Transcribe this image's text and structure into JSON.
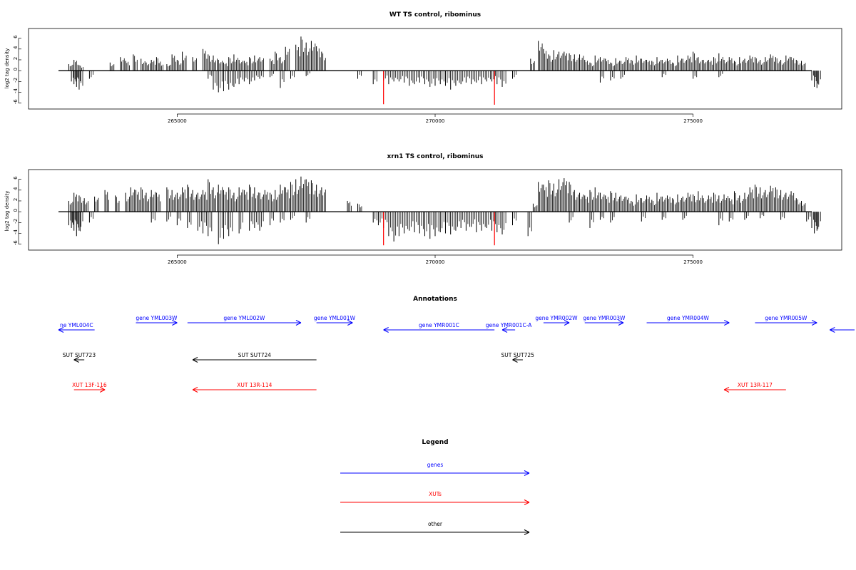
{
  "colors": {
    "gene": "#0000ff",
    "xut": "#ff0000",
    "other": "#000000",
    "bar": "#000000",
    "highlight": "#ff0000"
  },
  "chart_data": [
    {
      "type": "bar",
      "title": "WT TS control, ribominus",
      "ylabel": "log2 tag density",
      "xlim": [
        262700,
        277300
      ],
      "ylim": [
        -6.3,
        7
      ],
      "xticks": [
        "265000",
        "270000",
        "275000"
      ],
      "yticks": [
        "6",
        "4",
        "2",
        "0",
        "-2",
        "-4",
        "-6"
      ],
      "grid": false,
      "series": [
        {
          "x": [
            262900,
            263000,
            263100,
            263700,
            263900,
            264000,
            264150,
            264300,
            264400,
            264500,
            264600,
            264650,
            264800,
            264900,
            265000,
            265100,
            265300,
            265500,
            265600,
            265700,
            265800,
            265900,
            266000,
            266100,
            266200,
            266300,
            266400,
            266500,
            266600,
            266800,
            266900,
            267000,
            267100,
            267300,
            267400,
            267500,
            267600,
            267700,
            267800,
            271850,
            272000,
            272100,
            272200,
            272300,
            272400,
            272500,
            272600,
            272700,
            272800,
            272900,
            273000,
            273100,
            273200,
            273300,
            273400,
            273500,
            273600,
            273700,
            273800,
            273900,
            274000,
            274100,
            274200,
            274300,
            274400,
            274500,
            274600,
            274700,
            274800,
            274900,
            275000,
            275100,
            275200,
            275300,
            275400,
            275500,
            275600,
            275700,
            275800,
            275900,
            276000,
            276100,
            276200,
            276300,
            276400,
            276500,
            276600,
            276700,
            276800,
            276900,
            277000,
            277100
          ],
          "values": [
            1.2,
            2,
            1,
            1.5,
            2.5,
            1.8,
            3,
            2.2,
            1.5,
            2,
            2.5,
            1.4,
            1.2,
            3,
            2,
            3.5,
            2.5,
            4,
            3,
            2.8,
            2,
            1.5,
            2.5,
            3,
            2,
            1.8,
            2.5,
            2.8,
            2.5,
            2.2,
            3.5,
            2.5,
            4.4,
            4.8,
            6.3,
            5.2,
            5.5,
            4.5,
            3.5,
            2.2,
            5.5,
            4,
            3,
            3.8,
            3.5,
            3.5,
            3.2,
            3,
            3,
            2,
            1.5,
            2.8,
            2.5,
            2.2,
            1.5,
            2.3,
            1.8,
            2.5,
            2,
            2.8,
            2.2,
            2,
            1.8,
            2.5,
            2,
            2.2,
            1.5,
            2.8,
            2.2,
            2.8,
            3.5,
            2.5,
            2,
            2,
            2.5,
            3.2,
            2,
            2.5,
            1.8,
            2.5,
            2.2,
            2.8,
            2.5,
            2,
            2.5,
            3,
            2.5,
            2,
            2.8,
            2.5,
            2,
            1.8
          ],
          "neg_x": [
            262950,
            263000,
            263050,
            263100,
            263300,
            265600,
            265700,
            265800,
            265900,
            266000,
            266100,
            266200,
            266300,
            266400,
            266500,
            266600,
            266800,
            267000,
            267200,
            267500,
            268500,
            268800,
            269000,
            269100,
            269200,
            269300,
            269400,
            269500,
            269600,
            269700,
            269800,
            269900,
            270000,
            270100,
            270200,
            270300,
            270400,
            270500,
            270600,
            270700,
            270800,
            270900,
            271000,
            271100,
            271200,
            271300,
            271500,
            273200,
            273400,
            273600,
            274400,
            275000,
            275500,
            277300,
            277350,
            277400
          ],
          "neg_values": [
            -2,
            -2.5,
            -3,
            -3.5,
            -1.5,
            -1.5,
            -3.5,
            -4,
            -3.8,
            -3.5,
            -3,
            -2.5,
            -2,
            -2.5,
            -1.8,
            -1.5,
            -1.2,
            -3.2,
            -1.5,
            -1,
            -1.5,
            -2.5,
            -1.8,
            -2.5,
            -2,
            -2,
            -2.2,
            -2.8,
            -2.5,
            -2.2,
            -2.5,
            -3,
            -2.8,
            -2.5,
            -2.8,
            -3.5,
            -2.8,
            -2.5,
            -2.2,
            -2.5,
            -2.2,
            -2.5,
            -2,
            -2,
            -2.5,
            -3,
            -1.5,
            -2.2,
            -1.8,
            -1.5,
            -1.2,
            -1.5,
            -1.2,
            -1.8,
            -3,
            -3.2
          ],
          "highlight_x": [
            269000,
            271150
          ],
          "highlight_values": [
            -6.2,
            -6.3
          ]
        }
      ]
    },
    {
      "type": "bar",
      "title": "xrn1 TS control, ribominus",
      "ylabel": "log2 tag density",
      "xlim": [
        262700,
        277300
      ],
      "ylim": [
        -6.3,
        7
      ],
      "xticks": [
        "265000",
        "270000",
        "275000"
      ],
      "yticks": [
        "6",
        "4",
        "2",
        "0",
        "-2",
        "-4",
        "-6"
      ],
      "grid": false,
      "series": [
        {
          "x": [
            262900,
            263000,
            263100,
            263200,
            263400,
            263600,
            263800,
            264000,
            264100,
            264200,
            264300,
            264400,
            264500,
            264600,
            264800,
            264900,
            265000,
            265100,
            265200,
            265300,
            265400,
            265500,
            265600,
            265700,
            265800,
            265900,
            266000,
            266100,
            266200,
            266300,
            266400,
            266500,
            266600,
            266700,
            266800,
            266900,
            267000,
            267100,
            267200,
            267300,
            267400,
            267500,
            267600,
            267700,
            267800,
            268300,
            268500,
            271900,
            272000,
            272100,
            272200,
            272300,
            272400,
            272500,
            272600,
            272700,
            272800,
            272900,
            273000,
            273100,
            273200,
            273300,
            273400,
            273500,
            273600,
            273700,
            273800,
            273900,
            274000,
            274100,
            274200,
            274300,
            274400,
            274500,
            274600,
            274700,
            274800,
            274900,
            275000,
            275100,
            275200,
            275300,
            275400,
            275500,
            275600,
            275700,
            275800,
            275900,
            276000,
            276100,
            276200,
            276300,
            276400,
            276500,
            276600,
            276700,
            276800,
            276900,
            277000,
            277100
          ],
          "values": [
            2,
            3.5,
            3,
            2.5,
            2.8,
            4,
            3,
            3.5,
            4.5,
            4,
            4.5,
            3.5,
            4,
            3.5,
            4.5,
            4,
            3.5,
            4.5,
            5,
            4,
            3.5,
            4,
            6,
            4.5,
            5,
            4,
            4.5,
            3.5,
            4.5,
            4,
            5,
            4.5,
            3.5,
            4,
            3.5,
            4,
            5,
            4.5,
            5.5,
            6,
            6.5,
            6,
            5.8,
            5,
            4.5,
            2,
            1.5,
            1.5,
            5.5,
            5,
            5.8,
            5.2,
            6,
            6.2,
            5.5,
            4,
            3.5,
            3,
            4,
            4.5,
            3.5,
            3,
            3.8,
            3.5,
            3,
            2.8,
            2,
            3.2,
            2.5,
            3,
            2.2,
            3.5,
            2.8,
            3,
            2.5,
            3.2,
            2.8,
            3.5,
            3.2,
            3.8,
            2.5,
            3,
            3.5,
            3,
            3.2,
            2.5,
            3.8,
            3,
            3.5,
            4.5,
            5,
            4.5,
            4,
            4.8,
            4.5,
            4,
            3.5,
            3.8,
            2.5,
            2
          ],
          "neg_x": [
            262900,
            262950,
            263000,
            263050,
            263100,
            263300,
            264500,
            264800,
            265000,
            265200,
            265400,
            265500,
            265600,
            265800,
            265900,
            266000,
            266200,
            266400,
            266500,
            266600,
            266800,
            267000,
            267200,
            267500,
            268800,
            268900,
            269000,
            269100,
            269200,
            269300,
            269400,
            269500,
            269600,
            269700,
            269800,
            269900,
            270000,
            270100,
            270200,
            270300,
            270400,
            270500,
            270600,
            270700,
            270800,
            270900,
            271000,
            271100,
            271200,
            271300,
            271500,
            271800,
            272600,
            273000,
            273200,
            273400,
            274000,
            274400,
            274800,
            275500,
            275700,
            276000,
            276300,
            276700,
            277200,
            277300,
            277350,
            277400
          ],
          "neg_values": [
            -2.5,
            -3,
            -3.5,
            -4.5,
            -3.5,
            -2,
            -2,
            -1.8,
            -2.5,
            -3,
            -3.5,
            -4,
            -4.5,
            -6,
            -5,
            -4.5,
            -4,
            -3.5,
            -3,
            -3.5,
            -2.5,
            -2,
            -1.5,
            -2,
            -2,
            -2.5,
            -3,
            -4.5,
            -5.5,
            -4.5,
            -4,
            -3.5,
            -3.8,
            -4,
            -4.5,
            -5,
            -4.5,
            -3.8,
            -4,
            -4.2,
            -3.5,
            -3,
            -3.5,
            -2.8,
            -3.8,
            -3.5,
            -3,
            -3.5,
            -3.8,
            -4.2,
            -2.5,
            -4.5,
            -2,
            -3,
            -1.5,
            -2,
            -1.8,
            -1.5,
            -1.5,
            -2.5,
            -1.8,
            -1.5,
            -1.2,
            -1.5,
            -1.8,
            -3,
            -4,
            -3.5
          ],
          "highlight_x": [
            269000,
            271150
          ],
          "highlight_values": [
            -6.2,
            -6.2
          ]
        }
      ]
    }
  ],
  "annotations": {
    "title": "Annotations",
    "items": [
      {
        "label": "ne YML004C",
        "kind": "gene",
        "row": 1,
        "start": 262700,
        "end": 263400,
        "dir": "left"
      },
      {
        "label": "gene YML003W",
        "kind": "gene",
        "row": 0,
        "start": 264200,
        "end": 265000,
        "dir": "right"
      },
      {
        "label": "gene YML002W",
        "kind": "gene",
        "row": 0,
        "start": 265200,
        "end": 267400,
        "dir": "right"
      },
      {
        "label": "gene YML001W",
        "kind": "gene",
        "row": 0,
        "start": 267700,
        "end": 268400,
        "dir": "right"
      },
      {
        "label": "gene YMR001C",
        "kind": "gene",
        "row": 1,
        "start": 269000,
        "end": 271150,
        "dir": "left"
      },
      {
        "label": "gene YMR001C-A",
        "kind": "gene",
        "row": 1,
        "start": 271300,
        "end": 271550,
        "dir": "left"
      },
      {
        "label": "gene YMR002W",
        "kind": "gene",
        "row": 0,
        "start": 272100,
        "end": 272600,
        "dir": "right"
      },
      {
        "label": "gene YMR003W",
        "kind": "gene",
        "row": 0,
        "start": 272900,
        "end": 273650,
        "dir": "right"
      },
      {
        "label": "gene YMR004W",
        "kind": "gene",
        "row": 0,
        "start": 274100,
        "end": 275700,
        "dir": "right"
      },
      {
        "label": "gene YMR005W",
        "kind": "gene",
        "row": 0,
        "start": 276200,
        "end": 277400,
        "dir": "right"
      },
      {
        "label": "",
        "kind": "gene",
        "row": 1,
        "start": 277650,
        "end": 278700,
        "dir": "left"
      },
      {
        "label": "SUT SUT723",
        "kind": "other",
        "row": 2,
        "start": 263000,
        "end": 263200,
        "dir": "left"
      },
      {
        "label": "SUT SUT724",
        "kind": "other",
        "row": 2,
        "start": 265300,
        "end": 267700,
        "dir": "left"
      },
      {
        "label": "SUT SUT725",
        "kind": "other",
        "row": 2,
        "start": 271500,
        "end": 271700,
        "dir": "left"
      },
      {
        "label": "XUT 13F-116",
        "kind": "xut",
        "row": 3,
        "start": 263000,
        "end": 263600,
        "dir": "right"
      },
      {
        "label": "XUT 13R-114",
        "kind": "xut",
        "row": 3,
        "start": 265300,
        "end": 267700,
        "dir": "left"
      },
      {
        "label": "XUT 13R-117",
        "kind": "xut",
        "row": 3,
        "start": 275600,
        "end": 276800,
        "dir": "left"
      }
    ]
  },
  "legend": {
    "title": "Legend",
    "items": [
      {
        "label": "genes",
        "kind": "gene"
      },
      {
        "label": "XUTs",
        "kind": "xut"
      },
      {
        "label": "other",
        "kind": "other"
      }
    ]
  }
}
